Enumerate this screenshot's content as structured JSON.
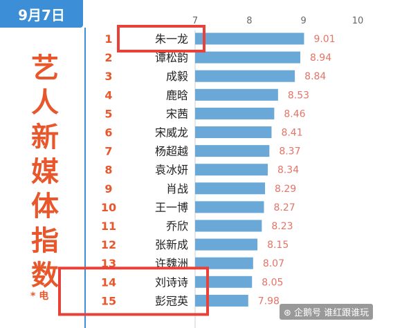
{
  "header": {
    "date": "9月7日",
    "title_chars": [
      "艺",
      "人",
      "新",
      "媒",
      "体",
      "指",
      "数"
    ],
    "footnote": "* 电",
    "watermark": "⊛ 企鹅号 谁红跟谁玩"
  },
  "chart_data": {
    "type": "bar",
    "orientation": "horizontal",
    "xlim": [
      7,
      10
    ],
    "xticks": [
      "7",
      "8",
      "9",
      "10"
    ],
    "ranks": [
      "1",
      "2",
      "3",
      "4",
      "5",
      "6",
      "7",
      "8",
      "9",
      "10",
      "11",
      "12",
      "13",
      "14",
      "15"
    ],
    "categories": [
      "朱一龙",
      "谭松韵",
      "成毅",
      "鹿晗",
      "宋茜",
      "宋威龙",
      "杨超越",
      "袁冰妍",
      "肖战",
      "王一博",
      "乔欣",
      "张新成",
      "许魏洲",
      "刘诗诗",
      "彭冠英"
    ],
    "values": [
      9.01,
      8.94,
      8.84,
      8.53,
      8.46,
      8.41,
      8.37,
      8.34,
      8.29,
      8.27,
      8.23,
      8.15,
      8.07,
      8.05,
      7.98
    ],
    "value_labels": [
      "9.01",
      "8.94",
      "8.84",
      "8.53",
      "8.46",
      "8.41",
      "8.37",
      "8.34",
      "8.29",
      "8.27",
      "8.23",
      "8.15",
      "8.07",
      "8.05",
      "7.98"
    ],
    "bar_color": "#6aa8d8",
    "highlight_color": "#e8413a",
    "highlighted_ranks": [
      "1",
      "14",
      "15"
    ]
  }
}
